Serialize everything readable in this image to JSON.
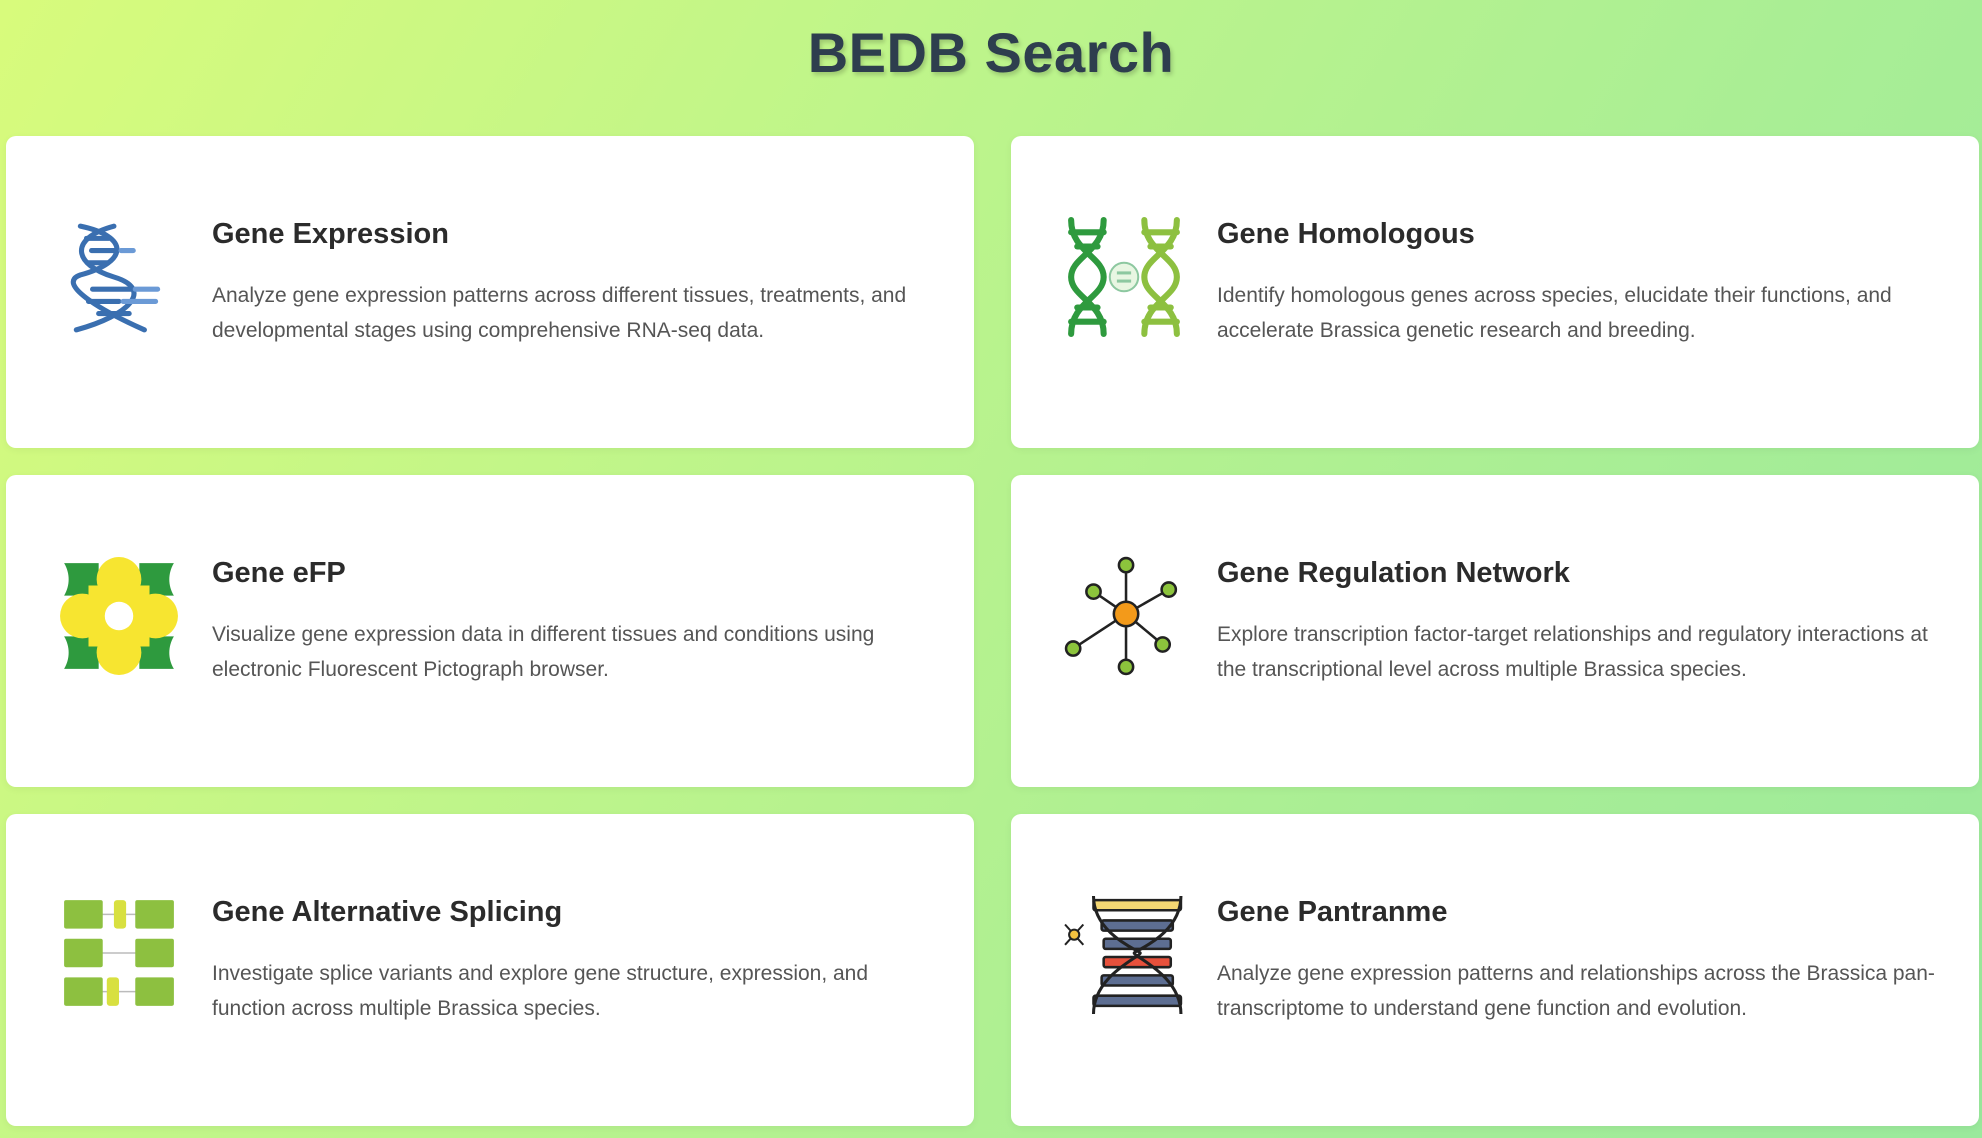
{
  "page": {
    "title": "BEDB Search"
  },
  "cards": [
    {
      "title": "Gene Expression",
      "description": "Analyze gene expression patterns across different tissues, treatments, and developmental stages using comprehensive RNA-seq data.",
      "icon": "dna-helix-icon"
    },
    {
      "title": "Gene Homologous",
      "description": "Identify homologous genes across species, elucidate their functions, and accelerate Brassica genetic research and breeding.",
      "icon": "dna-pair-equal-icon"
    },
    {
      "title": "Gene eFP",
      "description": "Visualize gene expression data in different tissues and conditions using electronic Fluorescent Pictograph browser.",
      "icon": "flower-icon"
    },
    {
      "title": "Gene Regulation Network",
      "description": "Explore transcription factor-target relationships and regulatory interactions at the transcriptional level across multiple Brassica species.",
      "icon": "network-icon"
    },
    {
      "title": "Gene Alternative Splicing",
      "description": "Investigate splice variants and explore gene structure, expression, and function across multiple Brassica species.",
      "icon": "splicing-blocks-icon"
    },
    {
      "title": "Gene Pantranme",
      "description": "Analyze gene expression patterns and relationships across the Brassica pan-transcriptome to understand gene function and evolution.",
      "icon": "colored-dna-icon"
    }
  ],
  "colors": {
    "title": "#2e3e4e",
    "dna_blue": "#3a6fb0",
    "green_dark": "#2e9a3e",
    "green_light": "#8dc040",
    "flower_yellow": "#f7e530",
    "node_orange": "#f39a1a",
    "node_green": "#8cc43c"
  }
}
